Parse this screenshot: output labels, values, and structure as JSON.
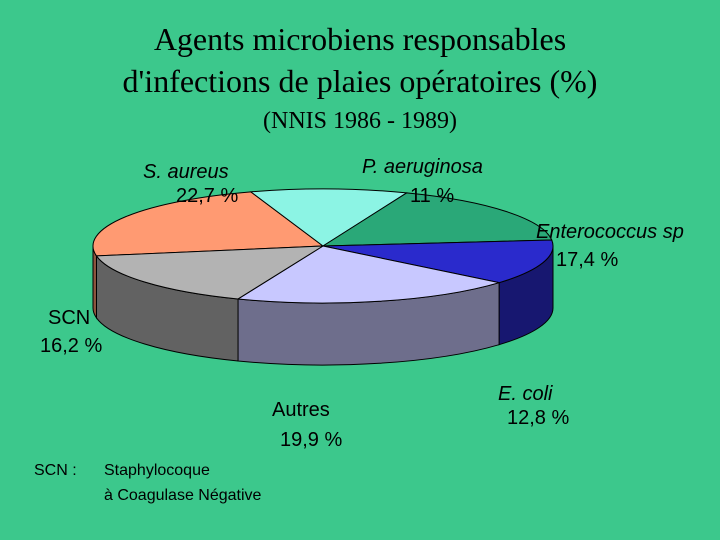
{
  "title_line1": "Agents microbiens responsables",
  "title_line2": "d'infections de plaies opératoires (%)",
  "subtitle": "(NNIS 1986 - 1989)",
  "chart_data": {
    "type": "pie",
    "title": "Agents microbiens responsables d'infections de plaies opératoires (%)",
    "subtitle": "(NNIS 1986 - 1989)",
    "slices": [
      {
        "name": "S. aureus",
        "value": 22.7,
        "value_label": "22,7 %",
        "color": "#ff9a72"
      },
      {
        "name": "P. aeruginosa",
        "value": 11,
        "value_label": "11 %",
        "color": "#8cf4e4"
      },
      {
        "name": "Enterococcus sp",
        "value": 17.4,
        "value_label": "17,4 %",
        "color": "#2aa878"
      },
      {
        "name": "E. coli",
        "value": 12.8,
        "value_label": "12,8 %",
        "color": "#2a2acc"
      },
      {
        "name": "Autres",
        "value": 19.9,
        "value_label": "19,9 %",
        "color": "#c8c8ff"
      },
      {
        "name": "SCN",
        "value": 16.2,
        "value_label": "16,2 %",
        "color": "#b3b3b3"
      }
    ]
  },
  "footnote": {
    "abbr": "SCN :",
    "line1": "Staphylocoque",
    "line2": "à Coagulase Négative"
  }
}
